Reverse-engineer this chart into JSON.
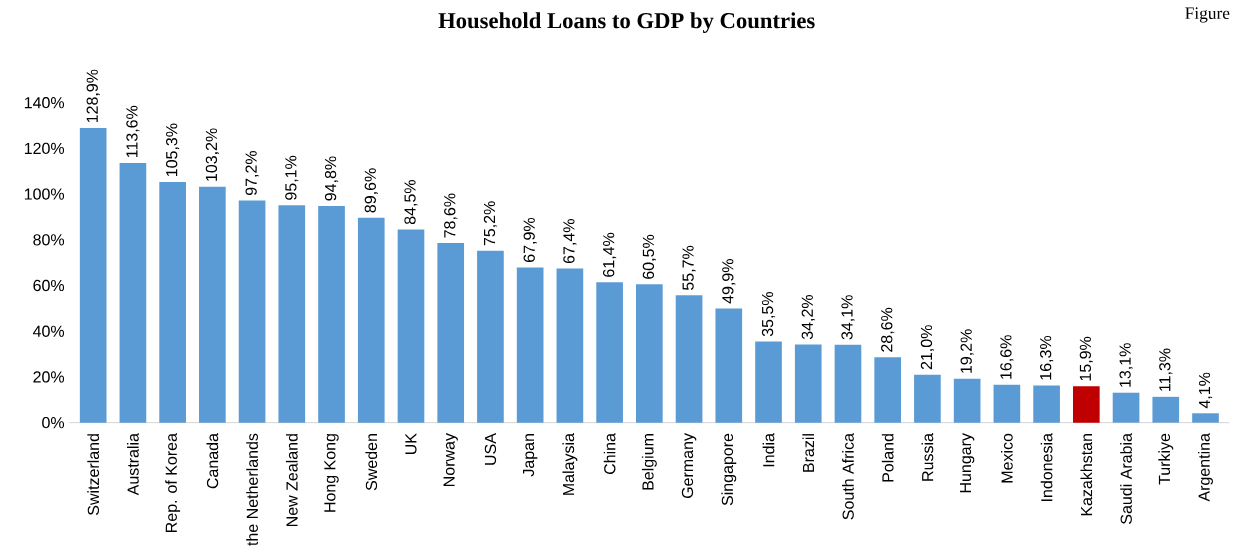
{
  "chart_data": {
    "type": "bar",
    "title": "Household Loans to GDP by Countries",
    "annotations": [
      "Figure"
    ],
    "categories": [
      "Switzerland",
      "Australia",
      "Rep. of Korea",
      "Canada",
      "the Netherlands",
      "New Zealand",
      "Hong Kong",
      "Sweden",
      "UK",
      "Norway",
      "USA",
      "Japan",
      "Malaysia",
      "China",
      "Belgium",
      "Germany",
      "Singapore",
      "India",
      "Brazil",
      "South Africa",
      "Poland",
      "Russia",
      "Hungary",
      "Mexico",
      "Indonesia",
      "Kazakhstan",
      "Saudi Arabia",
      "Turkiye",
      "Argentina"
    ],
    "values": [
      128.9,
      113.6,
      105.3,
      103.2,
      97.2,
      95.1,
      94.8,
      89.6,
      84.5,
      78.6,
      75.2,
      67.9,
      67.4,
      61.4,
      60.5,
      55.7,
      49.9,
      35.5,
      34.2,
      34.1,
      28.6,
      21.0,
      19.2,
      16.6,
      16.3,
      15.9,
      13.1,
      11.3,
      4.1
    ],
    "value_labels": [
      "128,9%",
      "113,6%",
      "105,3%",
      "103,2%",
      "97,2%",
      "95,1%",
      "94,8%",
      "89,6%",
      "84,5%",
      "78,6%",
      "75,2%",
      "67,9%",
      "67,4%",
      "61,4%",
      "60,5%",
      "55,7%",
      "49,9%",
      "35,5%",
      "34,2%",
      "34,1%",
      "28,6%",
      "21,0%",
      "19,2%",
      "16,6%",
      "16,3%",
      "15,9%",
      "13,1%",
      "11,3%",
      "4,1%"
    ],
    "colors": [
      "#5b9bd5",
      "#5b9bd5",
      "#5b9bd5",
      "#5b9bd5",
      "#5b9bd5",
      "#5b9bd5",
      "#5b9bd5",
      "#5b9bd5",
      "#5b9bd5",
      "#5b9bd5",
      "#5b9bd5",
      "#5b9bd5",
      "#5b9bd5",
      "#5b9bd5",
      "#5b9bd5",
      "#5b9bd5",
      "#5b9bd5",
      "#5b9bd5",
      "#5b9bd5",
      "#5b9bd5",
      "#5b9bd5",
      "#5b9bd5",
      "#5b9bd5",
      "#5b9bd5",
      "#5b9bd5",
      "#c00000",
      "#5b9bd5",
      "#5b9bd5",
      "#5b9bd5"
    ],
    "ylim": [
      0,
      140
    ],
    "yticks": [
      {
        "value": 0,
        "label": "0%"
      },
      {
        "value": 20,
        "label": "20%"
      },
      {
        "value": 40,
        "label": "40%"
      },
      {
        "value": 60,
        "label": "60%"
      },
      {
        "value": 80,
        "label": "80%"
      },
      {
        "value": 100,
        "label": "100%"
      },
      {
        "value": 120,
        "label": "120%"
      },
      {
        "value": 140,
        "label": "140%"
      }
    ]
  }
}
